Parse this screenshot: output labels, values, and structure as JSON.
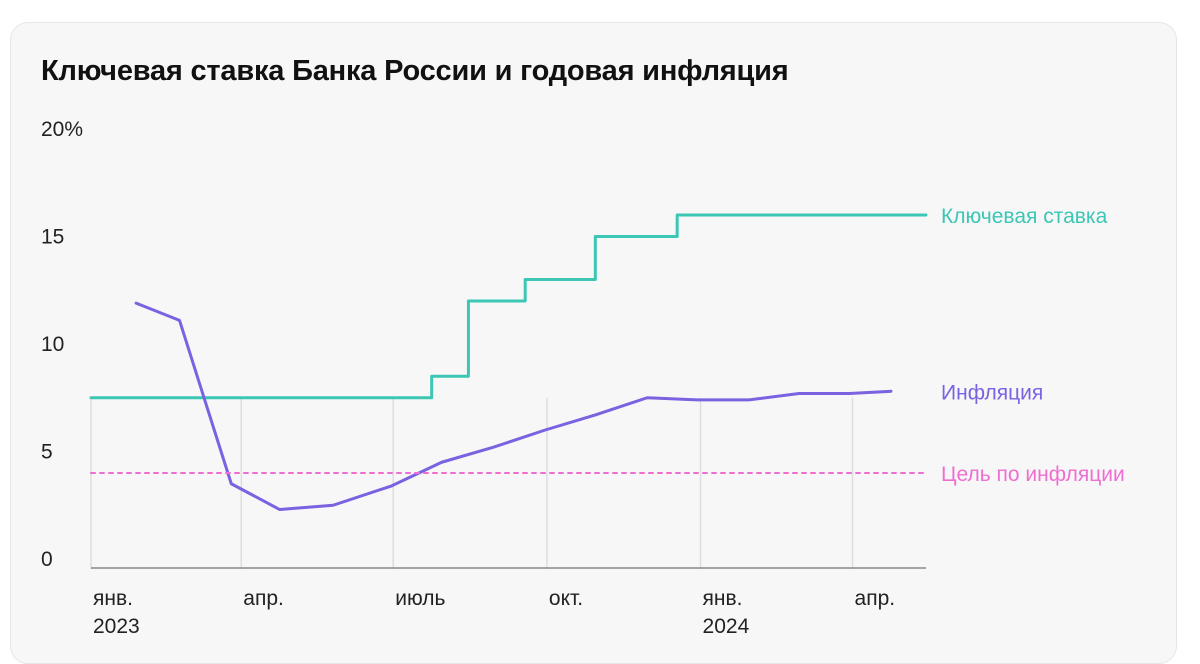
{
  "title": "Ключевая ставка Банка России и годовая инфляция",
  "colors": {
    "key_rate": "#3cc7b4",
    "inflation": "#7a62e0",
    "target": "#ef6ed2",
    "grid": "#dddddd",
    "axis": "#888888"
  },
  "chart_data": {
    "type": "line",
    "title": "Ключевая ставка Банка России и годовая инфляция",
    "xlabel": "",
    "ylabel": "",
    "ylim": [
      0,
      20
    ],
    "xlim": [
      "2023-01-01",
      "2024-05-15"
    ],
    "y_ticks": [
      {
        "value": 0,
        "label": "0"
      },
      {
        "value": 5,
        "label": "5"
      },
      {
        "value": 10,
        "label": "10"
      },
      {
        "value": 15,
        "label": "15"
      },
      {
        "value": 20,
        "label": "20%"
      }
    ],
    "x_ticks": [
      {
        "date": "2023-01-01",
        "label": "янв.",
        "label2": "2023"
      },
      {
        "date": "2023-04-01",
        "label": "апр.",
        "label2": ""
      },
      {
        "date": "2023-07-01",
        "label": "июль",
        "label2": ""
      },
      {
        "date": "2023-10-01",
        "label": "окт.",
        "label2": ""
      },
      {
        "date": "2024-01-01",
        "label": "янв.",
        "label2": "2024"
      },
      {
        "date": "2024-04-01",
        "label": "апр.",
        "label2": ""
      }
    ],
    "grid": true,
    "series": [
      {
        "name": "Ключевая ставка",
        "step": true,
        "points": [
          {
            "x": "2023-01-01",
            "y": 7.5
          },
          {
            "x": "2023-07-24",
            "y": 8.5
          },
          {
            "x": "2023-08-15",
            "y": 12
          },
          {
            "x": "2023-09-18",
            "y": 13
          },
          {
            "x": "2023-10-30",
            "y": 15
          },
          {
            "x": "2023-12-18",
            "y": 16
          },
          {
            "x": "2024-05-15",
            "y": 16
          }
        ]
      },
      {
        "name": "Инфляция",
        "step": false,
        "points": [
          {
            "x": "2023-01-28",
            "y": 11.9
          },
          {
            "x": "2023-02-23",
            "y": 11.1
          },
          {
            "x": "2023-03-26",
            "y": 3.5
          },
          {
            "x": "2023-04-24",
            "y": 2.3
          },
          {
            "x": "2023-05-26",
            "y": 2.5
          },
          {
            "x": "2023-06-30",
            "y": 3.4
          },
          {
            "x": "2023-07-30",
            "y": 4.5
          },
          {
            "x": "2023-08-30",
            "y": 5.2
          },
          {
            "x": "2023-09-30",
            "y": 6.0
          },
          {
            "x": "2023-10-30",
            "y": 6.7
          },
          {
            "x": "2023-11-30",
            "y": 7.5
          },
          {
            "x": "2023-12-30",
            "y": 7.4
          },
          {
            "x": "2024-01-30",
            "y": 7.4
          },
          {
            "x": "2024-02-29",
            "y": 7.7
          },
          {
            "x": "2024-03-30",
            "y": 7.7
          },
          {
            "x": "2024-04-24",
            "y": 7.8
          }
        ]
      },
      {
        "name": "Цель по инфляции",
        "dashed": true,
        "points": [
          {
            "x": "2023-01-01",
            "y": 4
          },
          {
            "x": "2024-05-15",
            "y": 4
          }
        ]
      }
    ]
  }
}
